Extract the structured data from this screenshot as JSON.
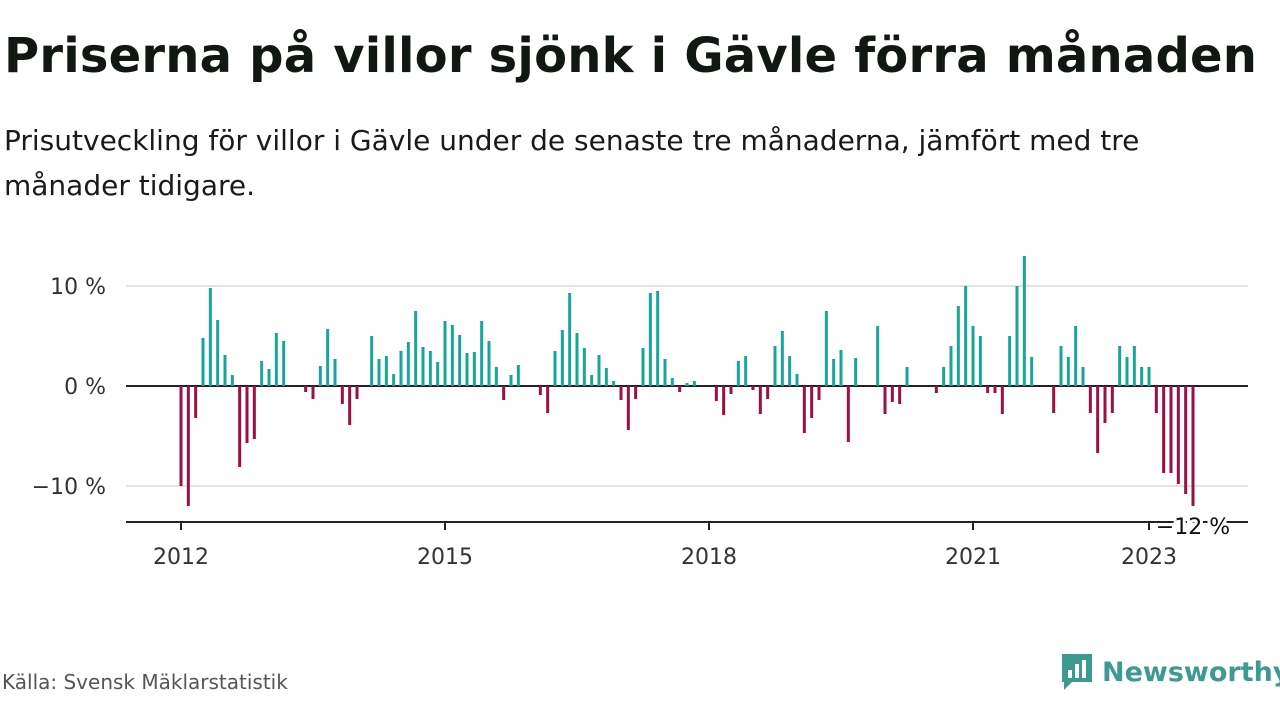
{
  "title": "Priserna på villor sjönk i Gävle förra månaden",
  "subtitle": "Prisutveckling för villor i Gävle under de senaste tre månaderna, jämfört med tre månader tidigare.",
  "source": "Källa: Svensk Mäklarstatistik",
  "brand": {
    "name": "Newsworthy",
    "icon": "newsworthy-logo-icon"
  },
  "colors": {
    "positive": "#1aa59a",
    "negative": "#9b0f43",
    "grid": "#d9d9d9",
    "axis": "#222222"
  },
  "chart_data": {
    "type": "bar",
    "ylim": [
      -14,
      13
    ],
    "yticks": [
      10,
      0,
      -10
    ],
    "ytick_labels": [
      "10 %",
      "0 %",
      "−10 %"
    ],
    "xtick_labels": [
      "2012",
      "2015",
      "2018",
      "2021",
      "2023"
    ],
    "xticks": [
      2012,
      2015,
      2018,
      2021,
      2023
    ],
    "last_value_label": "−12 %",
    "series": [
      {
        "start": "2012-01",
        "values": [
          -10,
          -12,
          -3.2,
          4.8,
          9.8,
          6.6,
          3.1,
          1.1,
          -8.1,
          -5.7,
          -5.3,
          2.5,
          1.7,
          5.3,
          4.5,
          0,
          0,
          -0.6,
          -1.3,
          2.0,
          5.7,
          2.7,
          -1.8,
          -3.9,
          -1.3,
          0,
          5.0,
          2.7,
          3.0,
          1.2,
          3.5,
          4.4,
          7.5,
          3.9,
          3.5,
          2.4,
          6.5,
          6.1,
          5.1,
          3.3,
          3.4,
          6.5,
          4.5,
          1.9,
          -1.4,
          1.1,
          2.1,
          0,
          0,
          -0.9,
          -2.7,
          3.5,
          5.6,
          9.3,
          5.3,
          3.8,
          1.1,
          3.1,
          1.8,
          0.5,
          -1.4,
          -4.4,
          -1.3,
          3.8,
          9.3,
          9.5,
          2.7,
          0.8,
          -0.6,
          0.3,
          0.5,
          0,
          0,
          -1.5,
          -2.9,
          -0.8,
          2.5,
          3.0,
          -0.4,
          -2.8,
          -1.3,
          4.0,
          5.5,
          3.0,
          1.2,
          -4.7,
          -3.2,
          -1.4,
          7.5,
          2.7,
          3.6,
          -5.6,
          2.8,
          0,
          0,
          6.0,
          -2.8,
          -1.6,
          -1.8,
          1.9,
          0,
          0,
          0,
          -0.7,
          1.9,
          4.0,
          8.0,
          10.0,
          6.0,
          5.0,
          -0.7,
          -0.7,
          -2.8,
          5.0,
          10.0,
          13.0,
          2.9,
          0,
          0,
          -2.7,
          4.0,
          2.9,
          6.0,
          1.9,
          -2.7,
          -6.7,
          -3.7,
          -2.7,
          4.0,
          2.9,
          4.0,
          1.9,
          1.9,
          -2.7,
          -8.7,
          -8.7,
          -9.8,
          -10.8,
          -12.0
        ]
      }
    ]
  }
}
